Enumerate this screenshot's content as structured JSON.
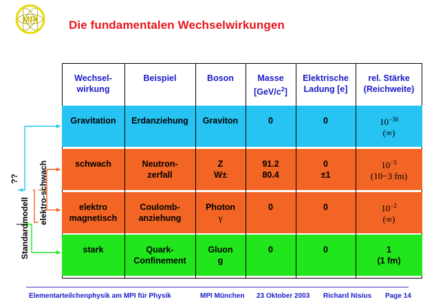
{
  "title": "Die fundamentalen Wechselwirkungen",
  "logo_text": "MPI",
  "header": {
    "col1": [
      "Wechsel-",
      "wirkung"
    ],
    "col2": "Beispiel",
    "col3": "Boson",
    "col4_line1": "Masse",
    "col4_line2": "[GeV/c",
    "col4_sup": "2",
    "col4_end": "]",
    "col5": [
      "Elektrische",
      "Ladung [e]"
    ],
    "col6": [
      "rel. Stärke",
      "(Reichweite)"
    ]
  },
  "rows": [
    {
      "name": "Gravitation",
      "example": [
        "Erdanziehung",
        ""
      ],
      "boson": [
        "Graviton",
        ""
      ],
      "mass": [
        "0",
        ""
      ],
      "charge": [
        "0",
        ""
      ],
      "strength_base": "10",
      "strength_exp": "−38",
      "range": "(∞)",
      "color": "#27c3f2"
    },
    {
      "name": "schwach",
      "example": [
        "Neutron-",
        "zerfall"
      ],
      "boson": [
        "Z",
        "W±"
      ],
      "mass": [
        "91.2",
        "80.4"
      ],
      "charge": [
        "0",
        "±1"
      ],
      "strength_base": "10",
      "strength_exp": "−5",
      "range": "(10−3 fm)",
      "color": "#f26524"
    },
    {
      "name": "elektro magnetisch",
      "example": [
        "Coulomb-",
        "anziehung"
      ],
      "boson": [
        "Photon",
        "γ"
      ],
      "mass": [
        "0",
        ""
      ],
      "charge": [
        "0",
        ""
      ],
      "strength_base": "10",
      "strength_exp": "−2",
      "range": "(∞)",
      "color": "#f26524"
    },
    {
      "name": "stark",
      "example": [
        "Quark-",
        "Confinement"
      ],
      "boson": [
        "Gluon",
        "g"
      ],
      "mass": [
        "0",
        ""
      ],
      "charge": [
        "0",
        ""
      ],
      "strength_base": "",
      "strength_exp": "",
      "range": "1",
      "range2": "(1 fm)",
      "color": "#22e61c"
    }
  ],
  "side": {
    "label_qq": "??",
    "label_standard": "Standardmodell",
    "label_ew": "elektro-schwach",
    "arrow_cyan": "#27c3f2",
    "arrow_orange": "#f26524",
    "arrow_green": "#22e61c"
  },
  "footer": {
    "left": "Elementarteilchenphysik am MPI für Physik",
    "place": "MPI München",
    "date": "23 Oktober 2003",
    "author": "Richard Nisius",
    "page": "Page 14"
  }
}
